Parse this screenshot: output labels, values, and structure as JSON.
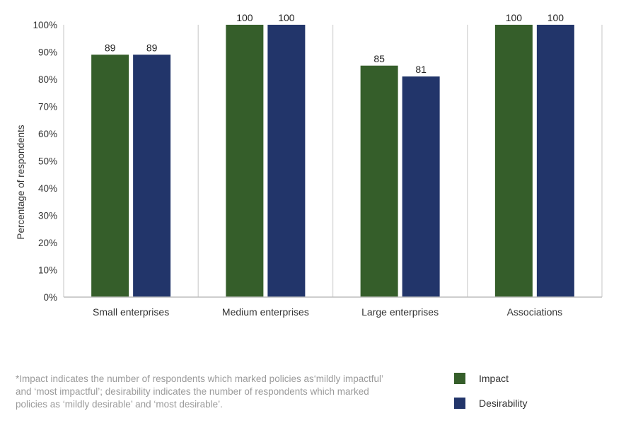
{
  "chart_data": {
    "type": "bar",
    "categories": [
      "Small enterprises",
      "Medium enterprises",
      "Large enterprises",
      "Associations"
    ],
    "series": [
      {
        "name": "Impact",
        "values": [
          89,
          100,
          85,
          100
        ],
        "color": "#355e2a"
      },
      {
        "name": "Desirability",
        "values": [
          89,
          100,
          81,
          100
        ],
        "color": "#22356a"
      }
    ],
    "ylabel": "Percentage of respondents",
    "xlabel": "",
    "ylim": [
      0,
      100
    ],
    "yticks": [
      "0%",
      "10%",
      "20%",
      "30%",
      "40%",
      "50%",
      "60%",
      "70%",
      "80%",
      "90%",
      "100%"
    ],
    "data_labels": true,
    "legend": "bottom-right",
    "grid": false
  },
  "footnote": "*Impact indicates the number of respondents which marked policies as‘mildly impactful’ and ‘most impactful’; desirability indicates the number of respondents which marked policies as ‘mildly desirable’ and ‘most desirable’.",
  "legend": [
    {
      "label": "Impact",
      "color": "#355e2a"
    },
    {
      "label": "Desirability",
      "color": "#22356a"
    }
  ]
}
